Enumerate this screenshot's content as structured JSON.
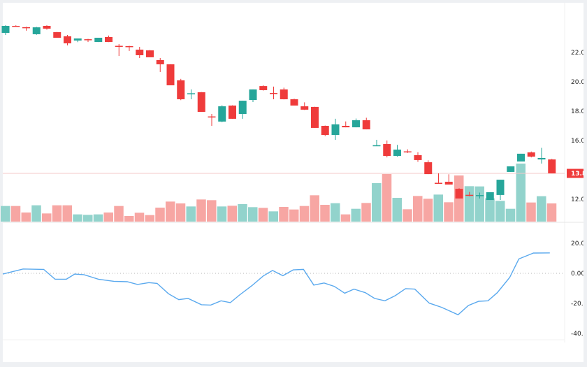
{
  "colors": {
    "up": "#26a69a",
    "down": "#ef3b3b",
    "vol_up": "#92d3cc",
    "vol_down": "#f7a6a3",
    "osc": "#5aa9ee",
    "last_price_bg": "#ef3b3b"
  },
  "price_axis": {
    "labels": [
      "22.0",
      "20.0",
      "18.0",
      "16.0",
      "12.0"
    ],
    "values": [
      22,
      20,
      18,
      16,
      12
    ]
  },
  "last_price": {
    "label": "13.8",
    "value": 13.76
  },
  "osc_axis": {
    "labels": [
      "20.0",
      "0.00",
      "-20.0",
      "-40.0"
    ],
    "values": [
      20,
      0,
      -20,
      -40
    ]
  },
  "chart_data": {
    "type": "candlestick",
    "candles": [
      [
        23.33,
        23.85,
        23.19,
        23.81
      ],
      [
        23.81,
        23.85,
        23.76,
        23.78
      ],
      [
        23.72,
        23.75,
        23.48,
        23.68
      ],
      [
        23.24,
        23.74,
        23.2,
        23.71
      ],
      [
        23.81,
        23.85,
        23.55,
        23.62
      ],
      [
        23.38,
        23.4,
        23.0,
        23.0
      ],
      [
        23.1,
        23.19,
        22.48,
        22.62
      ],
      [
        22.81,
        22.95,
        22.7,
        22.95
      ],
      [
        22.9,
        22.93,
        22.71,
        22.88
      ],
      [
        22.71,
        23.0,
        22.71,
        23.0
      ],
      [
        23.05,
        23.15,
        22.71,
        22.71
      ],
      [
        22.45,
        22.57,
        21.76,
        22.41
      ],
      [
        22.43,
        22.45,
        22.1,
        22.41
      ],
      [
        22.19,
        22.38,
        21.62,
        21.81
      ],
      [
        22.14,
        22.16,
        21.67,
        21.67
      ],
      [
        21.48,
        21.62,
        20.67,
        21.19
      ],
      [
        21.19,
        21.2,
        19.76,
        19.76
      ],
      [
        20.1,
        20.2,
        18.75,
        18.81
      ],
      [
        19.2,
        19.48,
        18.81,
        19.22
      ],
      [
        19.29,
        19.3,
        17.95,
        17.95
      ],
      [
        17.64,
        17.81,
        17.0,
        17.6
      ],
      [
        17.29,
        18.4,
        17.25,
        18.33
      ],
      [
        18.38,
        18.4,
        17.48,
        17.48
      ],
      [
        17.81,
        18.71,
        17.48,
        18.71
      ],
      [
        18.76,
        19.48,
        18.62,
        19.48
      ],
      [
        19.71,
        19.76,
        19.4,
        19.43
      ],
      [
        19.24,
        19.67,
        18.81,
        19.22
      ],
      [
        19.48,
        19.6,
        18.8,
        18.81
      ],
      [
        18.81,
        18.85,
        18.38,
        18.38
      ],
      [
        18.33,
        18.6,
        18.08,
        18.1
      ],
      [
        18.29,
        18.3,
        16.86,
        16.86
      ],
      [
        17.0,
        17.02,
        16.3,
        16.38
      ],
      [
        16.38,
        17.48,
        16.05,
        17.1
      ],
      [
        17.0,
        17.3,
        16.9,
        16.9
      ],
      [
        16.9,
        17.5,
        16.9,
        17.38
      ],
      [
        17.38,
        17.55,
        16.76,
        16.76
      ],
      [
        15.66,
        16.05,
        15.62,
        15.68
      ],
      [
        15.76,
        16.0,
        14.85,
        14.95
      ],
      [
        14.95,
        15.7,
        14.9,
        15.38
      ],
      [
        15.26,
        15.4,
        15.15,
        15.22
      ],
      [
        15.0,
        15.2,
        14.55,
        14.67
      ],
      [
        14.52,
        14.65,
        13.71,
        13.71
      ],
      [
        13.12,
        13.76,
        13.08,
        13.1
      ],
      [
        13.19,
        13.7,
        13.0,
        13.0
      ],
      [
        12.71,
        12.75,
        12.05,
        12.05
      ],
      [
        12.3,
        12.5,
        12.2,
        12.28
      ],
      [
        12.25,
        12.45,
        12.05,
        12.28
      ],
      [
        11.95,
        12.48,
        11.95,
        12.48
      ],
      [
        12.29,
        13.33,
        11.95,
        13.33
      ],
      [
        13.86,
        14.24,
        13.86,
        14.24
      ],
      [
        14.57,
        15.1,
        14.57,
        15.1
      ],
      [
        15.19,
        15.25,
        14.85,
        14.9
      ],
      [
        14.71,
        15.5,
        14.43,
        14.81
      ],
      [
        14.71,
        14.75,
        13.76,
        13.76
      ]
    ],
    "volume": [
      67,
      67,
      39,
      70,
      35,
      70,
      70,
      31,
      29,
      31,
      39,
      67,
      24,
      38,
      28,
      60,
      86,
      78,
      65,
      95,
      92,
      65,
      68,
      75,
      62,
      59,
      44,
      63,
      52,
      67,
      113,
      72,
      79,
      31,
      55,
      80,
      165,
      204,
      102,
      53,
      110,
      98,
      116,
      83,
      198,
      152,
      151,
      100,
      89,
      55,
      249,
      82,
      109,
      78
    ],
    "volume_up": [
      1,
      0,
      0,
      1,
      0,
      0,
      0,
      1,
      1,
      1,
      0,
      0,
      0,
      0,
      0,
      0,
      0,
      0,
      1,
      0,
      0,
      1,
      0,
      1,
      1,
      0,
      1,
      0,
      0,
      0,
      0,
      0,
      1,
      0,
      1,
      0,
      1,
      0,
      1,
      0,
      0,
      0,
      1,
      0,
      0,
      1,
      1,
      1,
      1,
      1,
      1,
      0,
      1,
      0
    ],
    "oscillator": [
      [
        -0.27,
        -0.5
      ],
      [
        1.7,
        2.9
      ],
      [
        3.7,
        2.6
      ],
      [
        4.8,
        -3.9
      ],
      [
        5.9,
        -3.9
      ],
      [
        6.7,
        -0.5
      ],
      [
        7.6,
        -0.9
      ],
      [
        9.0,
        -3.9
      ],
      [
        10.5,
        -5.3
      ],
      [
        11.8,
        -5.6
      ],
      [
        12.8,
        -7.4
      ],
      [
        13.9,
        -6.2
      ],
      [
        14.7,
        -6.7
      ],
      [
        15.8,
        -13.6
      ],
      [
        16.8,
        -17.5
      ],
      [
        17.7,
        -16.7
      ],
      [
        19.0,
        -20.9
      ],
      [
        19.9,
        -21.1
      ],
      [
        20.9,
        -18.3
      ],
      [
        21.8,
        -19.5
      ],
      [
        22.7,
        -14.4
      ],
      [
        23.9,
        -8.2
      ],
      [
        25.0,
        -1.7
      ],
      [
        25.9,
        1.9
      ],
      [
        26.9,
        -1.6
      ],
      [
        27.9,
        2.3
      ],
      [
        28.9,
        2.6
      ],
      [
        29.9,
        -7.8
      ],
      [
        30.9,
        -6.4
      ],
      [
        31.9,
        -8.7
      ],
      [
        32.9,
        -13.2
      ],
      [
        33.8,
        -10.5
      ],
      [
        34.9,
        -12.9
      ],
      [
        35.8,
        -16.7
      ],
      [
        36.8,
        -18.3
      ],
      [
        37.8,
        -14.9
      ],
      [
        38.8,
        -10.2
      ],
      [
        39.7,
        -10.5
      ],
      [
        41.1,
        -19.8
      ],
      [
        42.3,
        -22.6
      ],
      [
        43.9,
        -27.6
      ],
      [
        44.9,
        -21.4
      ],
      [
        45.9,
        -18.6
      ],
      [
        46.8,
        -18.3
      ],
      [
        47.7,
        -12.9
      ],
      [
        48.9,
        -2.8
      ],
      [
        49.8,
        9.6
      ],
      [
        51.2,
        13.5
      ],
      [
        52.8,
        13.6
      ]
    ],
    "price_range": [
      11.5,
      24.5
    ],
    "osc_range": [
      -40,
      20
    ]
  }
}
